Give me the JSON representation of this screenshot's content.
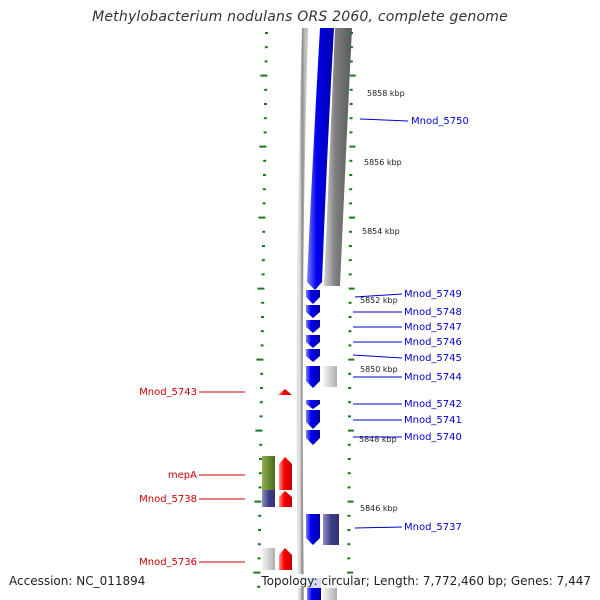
{
  "title": "Methylobacterium nodulans ORS 2060, complete genome",
  "footer": {
    "accession": "Accession: NC_011894",
    "summary": "Topology: circular; Length: 7,772,460 bp; Genes: 7,447"
  },
  "colors": {
    "forward_gene": "#0000ee",
    "reverse_gene": "#ee0000",
    "tick": "#1a7a1a",
    "backbone": "#8c8c8c",
    "blue_label": "#0000cc",
    "red_label": "#cc0000",
    "grey_gene": "#c8c8c8",
    "purple_gene": "#505096",
    "olive_gene": "#6a8a2a"
  },
  "scale_labels": [
    "5858 kbp",
    "5856 kbp",
    "5854 kbp",
    "5852 kbp",
    "5850 kbp",
    "5848 kbp",
    "5846 kbp"
  ],
  "forward_genes": [
    "Mnod_5750",
    "Mnod_5749",
    "Mnod_5748",
    "Mnod_5747",
    "Mnod_5746",
    "Mnod_5745",
    "Mnod_5744",
    "Mnod_5742",
    "Mnod_5741",
    "Mnod_5740",
    "Mnod_5737"
  ],
  "reverse_genes": [
    "Mnod_5743",
    "mepA",
    "Mnod_5738",
    "Mnod_5736"
  ]
}
